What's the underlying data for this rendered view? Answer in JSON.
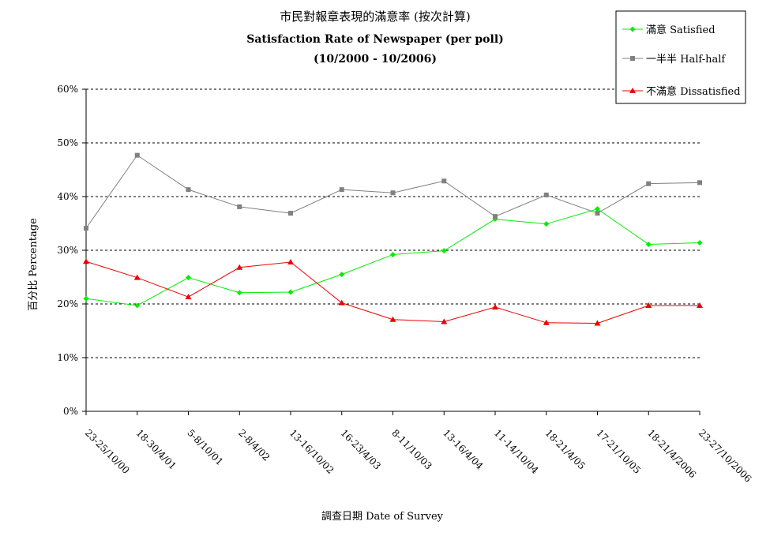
{
  "chart_data": {
    "type": "line",
    "title": "市民對報章表現的滿意率 (按次計算)",
    "subtitle": "Satisfaction Rate of Newspaper (per poll)",
    "period": "(10/2000 - 10/2006)",
    "xlabel": "調查日期 Date of Survey",
    "ylabel": "百分比 Percentage",
    "ylim": [
      0,
      60
    ],
    "yticks": [
      "0%",
      "10%",
      "20%",
      "30%",
      "40%",
      "50%",
      "60%"
    ],
    "grid": true,
    "legend_position": "top-right",
    "categories": [
      "23-25/10/00",
      "18-30/4/01",
      "5-8/10/01",
      "2-8/4/02",
      "13-16/10/02",
      "16-23/4/03",
      "8-11/10/03",
      "13-16/4/04",
      "11-14/10/04",
      "18-21/4/05",
      "17-21/10/05",
      "18-21/4/2006",
      "23-27/10/2006"
    ],
    "series": [
      {
        "name": "滿意 Satisfied",
        "color": "#00ee00",
        "marker": "diamond",
        "values": [
          21.0,
          19.7,
          24.9,
          22.1,
          22.2,
          25.5,
          29.2,
          29.9,
          35.8,
          34.9,
          37.7,
          31.1,
          31.4
        ]
      },
      {
        "name": "一半半 Half-half",
        "color": "#808080",
        "marker": "square",
        "values": [
          34.1,
          47.7,
          41.3,
          38.1,
          36.9,
          41.3,
          40.7,
          42.9,
          36.3,
          40.3,
          36.9,
          42.4,
          42.6
        ]
      },
      {
        "name": "不滿意 Dissatisfied",
        "color": "#ee0000",
        "marker": "triangle",
        "values": [
          27.9,
          24.9,
          21.3,
          26.8,
          27.8,
          20.2,
          17.1,
          16.7,
          19.4,
          16.5,
          16.4,
          19.7,
          19.7
        ]
      }
    ]
  }
}
